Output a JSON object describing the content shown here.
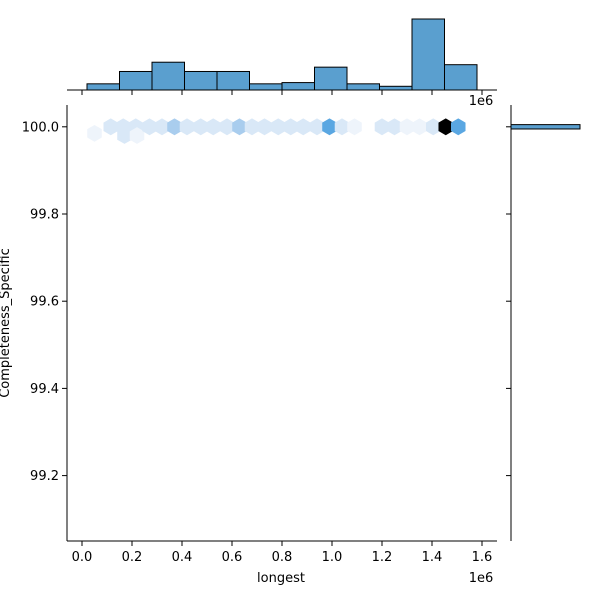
{
  "chart_data": {
    "type": "hexbin",
    "xlabel": "longest",
    "ylabel": "Completeness_Specific",
    "x_offset_label": "1e6",
    "top_hist_offset_label": "1e6",
    "xlim": [
      -0.06,
      1.66
    ],
    "ylim": [
      99.05,
      100.05
    ],
    "x_ticks": [
      0.0,
      0.2,
      0.4,
      0.6,
      0.8,
      1.0,
      1.2,
      1.4,
      1.6
    ],
    "x_tick_labels": [
      "0.0",
      "0.2",
      "0.4",
      "0.6",
      "0.8",
      "1.0",
      "1.2",
      "1.4",
      "1.6"
    ],
    "y_ticks": [
      99.2,
      99.4,
      99.6,
      99.8,
      100.0
    ],
    "y_tick_labels": [
      "99.2",
      "99.4",
      "99.6",
      "99.8",
      "100.0"
    ],
    "colors": {
      "hist_fill": "#5a9fcf",
      "hist_edge": "#000000",
      "hex_max": "#000000",
      "hex_high": "#5aa7e2",
      "hex_mid": "#a9cdee",
      "hex_low": "#d9e8f7",
      "hex_faint": "#eef4fb"
    },
    "hexbins": [
      {
        "x": 0.05,
        "y": 99.985,
        "density": 0.03
      },
      {
        "x": 0.115,
        "y": 100.0,
        "density": 0.12
      },
      {
        "x": 0.165,
        "y": 100.0,
        "density": 0.2
      },
      {
        "x": 0.17,
        "y": 99.98,
        "density": 0.1
      },
      {
        "x": 0.215,
        "y": 100.0,
        "density": 0.22
      },
      {
        "x": 0.22,
        "y": 99.98,
        "density": 0.06
      },
      {
        "x": 0.27,
        "y": 100.0,
        "density": 0.18
      },
      {
        "x": 0.32,
        "y": 100.0,
        "density": 0.2
      },
      {
        "x": 0.37,
        "y": 100.0,
        "density": 0.3
      },
      {
        "x": 0.42,
        "y": 100.0,
        "density": 0.22
      },
      {
        "x": 0.475,
        "y": 100.0,
        "density": 0.15
      },
      {
        "x": 0.525,
        "y": 100.0,
        "density": 0.2
      },
      {
        "x": 0.58,
        "y": 100.0,
        "density": 0.22
      },
      {
        "x": 0.63,
        "y": 100.0,
        "density": 0.3
      },
      {
        "x": 0.68,
        "y": 100.0,
        "density": 0.1
      },
      {
        "x": 0.73,
        "y": 100.0,
        "density": 0.1
      },
      {
        "x": 0.785,
        "y": 100.0,
        "density": 0.12
      },
      {
        "x": 0.835,
        "y": 100.0,
        "density": 0.1
      },
      {
        "x": 0.885,
        "y": 100.0,
        "density": 0.22
      },
      {
        "x": 0.94,
        "y": 100.0,
        "density": 0.15
      },
      {
        "x": 0.99,
        "y": 100.0,
        "density": 0.55
      },
      {
        "x": 1.04,
        "y": 100.0,
        "density": 0.12
      },
      {
        "x": 1.09,
        "y": 100.0,
        "density": 0.05
      },
      {
        "x": 1.2,
        "y": 100.0,
        "density": 0.15
      },
      {
        "x": 1.25,
        "y": 100.0,
        "density": 0.12
      },
      {
        "x": 1.3,
        "y": 100.0,
        "density": 0.06
      },
      {
        "x": 1.35,
        "y": 100.0,
        "density": 0.06
      },
      {
        "x": 1.405,
        "y": 100.0,
        "density": 0.12
      },
      {
        "x": 1.455,
        "y": 100.0,
        "density": 1.0
      },
      {
        "x": 1.505,
        "y": 100.0,
        "density": 0.6
      }
    ],
    "top_histogram": {
      "bin_edges": [
        0.02,
        0.15,
        0.28,
        0.41,
        0.54,
        0.67,
        0.8,
        0.93,
        1.06,
        1.19,
        1.32,
        1.45,
        1.58
      ],
      "counts": [
        1,
        3,
        4.5,
        3,
        3,
        1,
        1.2,
        3.7,
        1,
        0.6,
        11.5,
        4.1
      ]
    },
    "right_histogram": {
      "bin": [
        99.995,
        100.005
      ],
      "count": 1
    }
  }
}
